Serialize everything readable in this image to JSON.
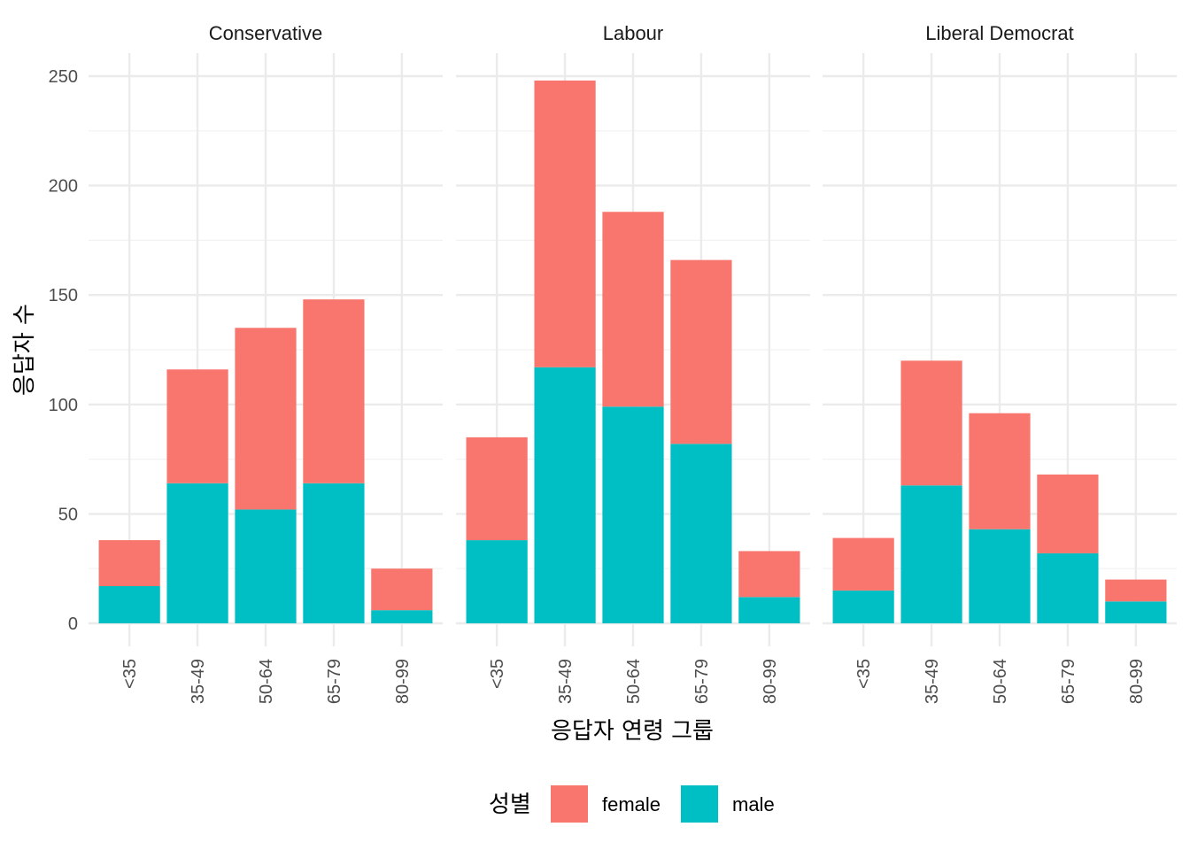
{
  "chart_data": {
    "type": "bar",
    "stacked": true,
    "facets": [
      "Conservative",
      "Labour",
      "Liberal Democrat"
    ],
    "categories": [
      "<35",
      "35-49",
      "50-64",
      "65-79",
      "80-99"
    ],
    "xlabel": "응답자 연령 그룹",
    "ylabel": "응답자 수",
    "ylim": [
      0,
      250
    ],
    "yticks": [
      0,
      50,
      100,
      150,
      200,
      250
    ],
    "grid": true,
    "legend": {
      "title": "성별",
      "position": "bottom",
      "entries": [
        "female",
        "male"
      ]
    },
    "colors": {
      "female": "#F8766D",
      "male": "#00BFC4"
    },
    "series": [
      {
        "name": "female",
        "facet_values": {
          "Conservative": [
            21,
            52,
            83,
            84,
            19
          ],
          "Labour": [
            47,
            131,
            89,
            84,
            21
          ],
          "Liberal Democrat": [
            24,
            57,
            53,
            36,
            10
          ]
        }
      },
      {
        "name": "male",
        "facet_values": {
          "Conservative": [
            17,
            64,
            52,
            64,
            6
          ],
          "Labour": [
            38,
            117,
            99,
            82,
            12
          ],
          "Liberal Democrat": [
            15,
            63,
            43,
            32,
            10
          ]
        }
      }
    ]
  }
}
